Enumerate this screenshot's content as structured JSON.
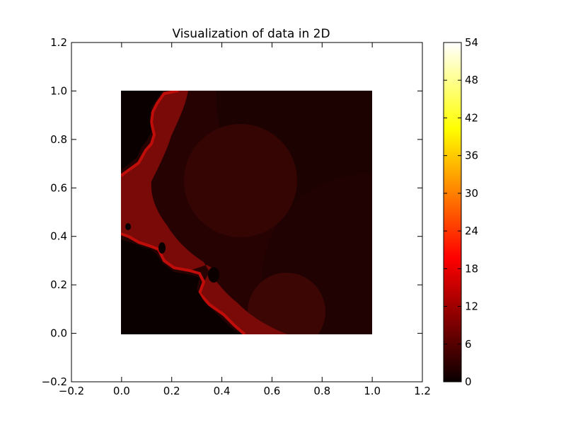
{
  "chart_data": {
    "type": "heatmap",
    "title": "Visualization of data in 2D",
    "xlabel": "",
    "ylabel": "",
    "xlim": [
      -0.2,
      1.2
    ],
    "ylim": [
      -0.2,
      1.2
    ],
    "x_ticks": [
      -0.2,
      0.0,
      0.2,
      0.4,
      0.6,
      0.8,
      1.0,
      1.2
    ],
    "y_ticks": [
      -0.2,
      0.0,
      0.2,
      0.4,
      0.6,
      0.8,
      1.0,
      1.2
    ],
    "x_tick_labels": [
      "−0.2",
      "0.0",
      "0.2",
      "0.4",
      "0.6",
      "0.8",
      "1.0",
      "1.2"
    ],
    "y_tick_labels": [
      "−0.2",
      "0.0",
      "0.2",
      "0.4",
      "0.6",
      "0.8",
      "1.0",
      "1.2"
    ],
    "extent": {
      "x": [
        0.0,
        1.0
      ],
      "y": [
        0.0,
        1.0
      ]
    },
    "colormap": "hot",
    "colormap_stops": [
      "#0a0000",
      "#ff0000",
      "#ffff00",
      "#ffffff"
    ],
    "colorbar": {
      "min": 0,
      "max": 54,
      "ticks": [
        0,
        6,
        12,
        18,
        24,
        30,
        36,
        42,
        48,
        54
      ],
      "tick_labels": [
        "0",
        "6",
        "12",
        "18",
        "24",
        "30",
        "36",
        "42",
        "48",
        "54"
      ]
    },
    "grid": false,
    "legend": "none"
  }
}
